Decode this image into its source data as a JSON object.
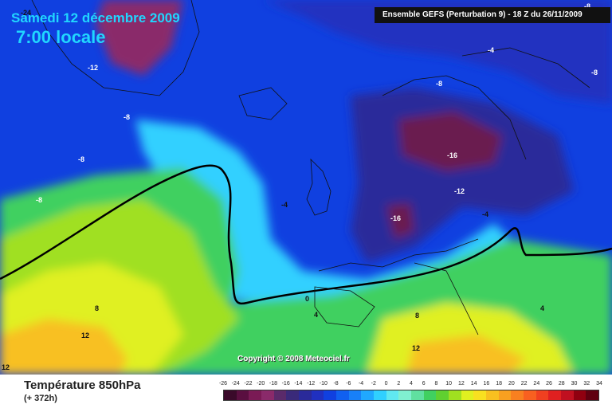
{
  "map": {
    "title_date": "Samedi 12 décembre 2009",
    "title_time": "7:00 locale",
    "run_info": "Ensemble GEFS (Perturbation 9)  -  18 Z du 26/11/2009",
    "copyright": "Copyright © 2008 Meteociel.fr",
    "parameter": "Température 850hPa",
    "lead_time": "(+ 372h)",
    "isoline_labels": [
      {
        "text": "-24",
        "light": false
      },
      {
        "text": "-12",
        "light": true
      },
      {
        "text": "-8",
        "light": true
      },
      {
        "text": "-8",
        "light": true
      },
      {
        "text": "-8",
        "light": true
      },
      {
        "text": "-4",
        "light": true
      },
      {
        "text": "-8",
        "light": true
      },
      {
        "text": "-8",
        "light": true
      },
      {
        "text": "-16",
        "light": true
      },
      {
        "text": "-12",
        "light": true
      },
      {
        "text": "-16",
        "light": true
      },
      {
        "text": "-4",
        "light": false
      },
      {
        "text": "0",
        "light": false
      },
      {
        "text": "4",
        "light": false
      },
      {
        "text": "8",
        "light": false
      },
      {
        "text": "8",
        "light": false
      },
      {
        "text": "12",
        "light": false
      },
      {
        "text": "12",
        "light": false
      },
      {
        "text": "4",
        "light": false
      },
      {
        "text": "-4",
        "light": false
      },
      {
        "text": "12",
        "light": false
      },
      {
        "text": "-8",
        "light": true
      }
    ]
  },
  "legend": {
    "labels": [
      "-26",
      "-24",
      "-22",
      "-20",
      "-18",
      "-16",
      "-14",
      "-12",
      "-10",
      "-8",
      "-6",
      "-4",
      "-2",
      "0",
      "2",
      "4",
      "6",
      "8",
      "10",
      "12",
      "14",
      "16",
      "18",
      "20",
      "22",
      "24",
      "26",
      "28",
      "30",
      "32",
      "34"
    ],
    "colors": [
      "#3a0a2a",
      "#5a0f40",
      "#7a1a55",
      "#8a2a6a",
      "#5a2a6a",
      "#3a2a7a",
      "#2a2a9a",
      "#2030c0",
      "#1040e0",
      "#1060f0",
      "#1880f8",
      "#20a8ff",
      "#30d0ff",
      "#60e8f0",
      "#80f0d0",
      "#60e0a0",
      "#40d060",
      "#60d030",
      "#a0e020",
      "#e0f020",
      "#f8e020",
      "#f8c020",
      "#f8a020",
      "#f88020",
      "#f86020",
      "#f04020",
      "#e02020",
      "#c01020",
      "#900010",
      "#600010"
    ]
  }
}
